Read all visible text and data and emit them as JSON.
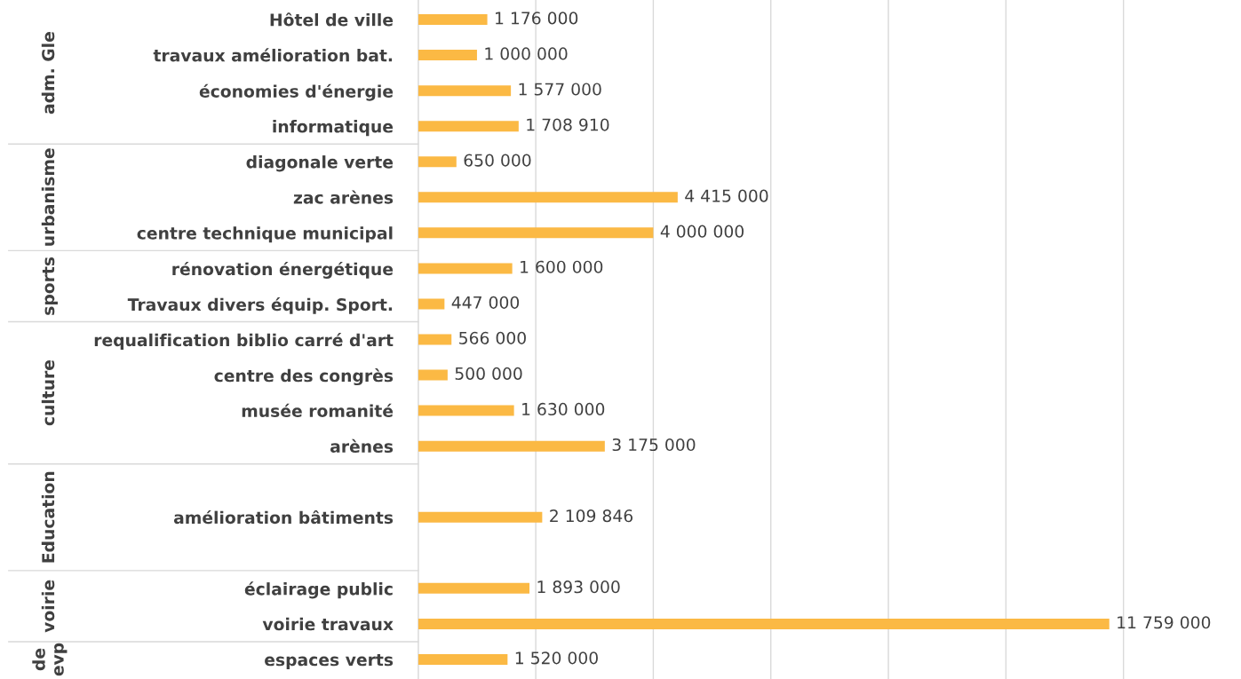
{
  "chart_data": {
    "type": "bar",
    "orientation": "horizontal",
    "categories": [
      "Hôtel de ville",
      "travaux amélioration bat.",
      "économies d'énergie",
      "informatique",
      "diagonale verte",
      "zac arènes",
      "centre technique municipal",
      "rénovation énergétique",
      "Travaux divers équip. Sport.",
      "requalification biblio carré d'art",
      "centre des congrès",
      "musée romanité",
      "arènes",
      null,
      "amélioration bâtiments",
      null,
      "éclairage public",
      "voirie travaux",
      "espaces verts"
    ],
    "values": [
      1176000,
      1000000,
      1577000,
      1708910,
      650000,
      4415000,
      4000000,
      1600000,
      447000,
      566000,
      500000,
      1630000,
      3175000,
      null,
      2109846,
      null,
      1893000,
      11759000,
      1520000
    ],
    "value_labels": [
      "1 176 000",
      "1 000 000",
      "1 577 000",
      "1 708 910",
      "650 000",
      "4 415 000",
      "4 000 000",
      "1 600 000",
      "447 000",
      "566 000",
      "500 000",
      "1 630 000",
      "3 175 000",
      null,
      "2 109 846",
      null,
      "1 893 000",
      "11 759 000",
      "1 520 000"
    ],
    "color": "#fbb944",
    "xticks": [
      {
        "value": 0,
        "label": null
      },
      {
        "value": 2000000,
        "label": null
      },
      {
        "value": 4000000,
        "label": null
      },
      {
        "value": 6000000,
        "label": null
      },
      {
        "value": 8000000,
        "label": null
      },
      {
        "value": 10000000,
        "label": null
      },
      {
        "value": 12000000,
        "label": null
      }
    ],
    "grid": "x",
    "tick_labels": "y",
    "annotations": [
      "adm. Gle",
      "urbanisme",
      "sports",
      "culture",
      "Education",
      "voirie",
      "de\nevp"
    ]
  }
}
